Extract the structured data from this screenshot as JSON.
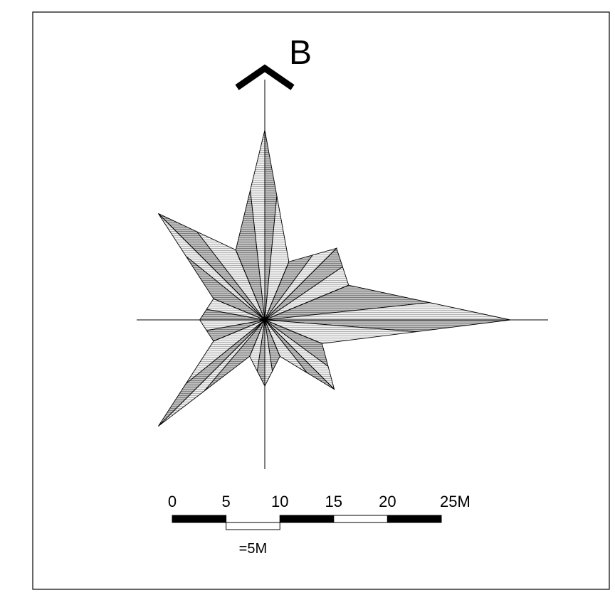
{
  "north_label": "B",
  "scale_bar": {
    "tick_labels": [
      "0",
      "5",
      "10",
      "15",
      "20",
      "25M"
    ],
    "unit_note": "=5M",
    "segment_length": 5
  },
  "rose": {
    "directions": [
      "N",
      "NNE",
      "NE",
      "ENE",
      "E",
      "ESE",
      "SE",
      "SSE",
      "S",
      "SSW",
      "SW",
      "WSW",
      "W",
      "WNW",
      "NW",
      "NNW"
    ],
    "values": [
      17.8,
      5.9,
      9.5,
      8.5,
      23.0,
      5.8,
      9.2,
      3.7,
      6.2,
      3.7,
      14.1,
      5.2,
      6.1,
      5.2,
      14.1,
      7.1
    ]
  },
  "colors": {
    "stroke": "#000000",
    "dark_fill": "#bdbdbd",
    "light_fill": "#e6e6e6",
    "hatch": "#6e6e6e"
  }
}
